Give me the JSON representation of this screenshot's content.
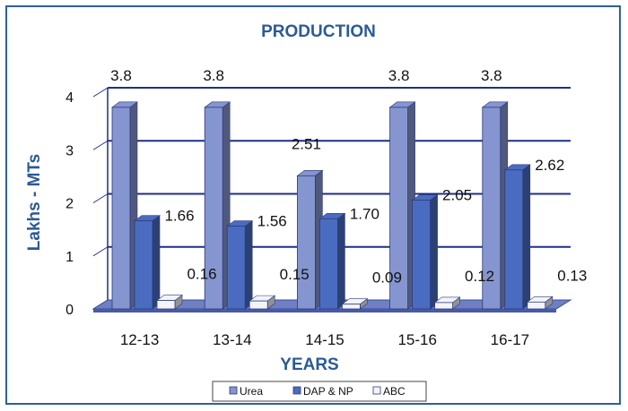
{
  "chart_data": {
    "type": "bar",
    "title": "PRODUCTION",
    "xlabel": "YEARS",
    "ylabel": "Lakhs - MTs",
    "categories": [
      "12-13",
      "13-14",
      "14-15",
      "15-16",
      "16-17"
    ],
    "ylim": [
      0,
      4
    ],
    "yticks": [
      "0",
      "1",
      "2",
      "3",
      "4"
    ],
    "grid": true,
    "legend_position": "bottom",
    "series": [
      {
        "name": "Urea",
        "values": [
          3.8,
          3.8,
          2.51,
          3.8,
          3.8
        ],
        "labels": [
          "3.8",
          "3.8",
          "2.51",
          "3.8",
          "3.8"
        ],
        "color": "#8595cf"
      },
      {
        "name": "DAP & NP",
        "values": [
          1.66,
          1.56,
          1.7,
          2.05,
          2.62
        ],
        "labels": [
          "1.66",
          "1.56",
          "1.70",
          "2.05",
          "2.62"
        ],
        "color": "#4a6cc0"
      },
      {
        "name": "ABC",
        "values": [
          0.16,
          0.15,
          0.09,
          0.12,
          0.13
        ],
        "labels": [
          "0.16",
          "0.15",
          "0.09",
          "0.12",
          "0.13"
        ],
        "color": "#f3f4fa"
      }
    ]
  }
}
